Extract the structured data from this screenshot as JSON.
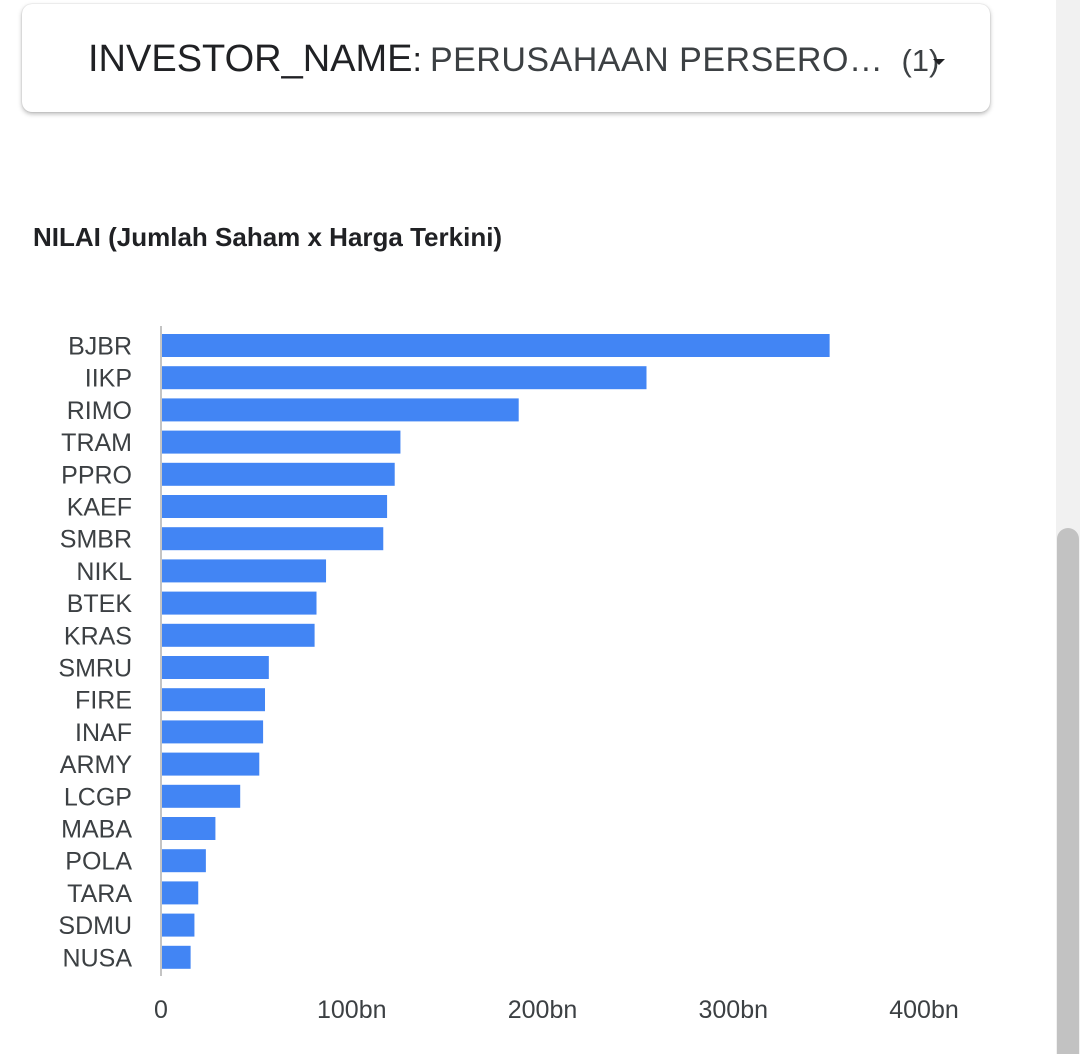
{
  "filter": {
    "field": "INVESTOR_NAME",
    "colon": ":",
    "value": "PERUSAHAAN PERSERO…",
    "count": "(1)"
  },
  "chart_data": {
    "type": "bar",
    "orientation": "horizontal",
    "title": "NILAI (Jumlah Saham x Harga Terkini)",
    "xlabel": "",
    "ylabel": "",
    "categories": [
      "BJBR",
      "IIKP",
      "RIMO",
      "TRAM",
      "PPRO",
      "KAEF",
      "SMBR",
      "NIKL",
      "BTEK",
      "KRAS",
      "SMRU",
      "FIRE",
      "INAF",
      "ARMY",
      "LCGP",
      "MABA",
      "POLA",
      "TARA",
      "SDMU",
      "NUSA"
    ],
    "values": [
      350,
      254,
      187,
      125,
      122,
      118,
      116,
      86,
      81,
      80,
      56,
      54,
      53,
      51,
      41,
      28,
      23,
      19,
      17,
      15
    ],
    "unit": "bn",
    "xlim": [
      0,
      400
    ],
    "x_ticks": [
      0,
      100,
      200,
      300,
      400
    ],
    "x_tick_labels": [
      "0",
      "100bn",
      "200bn",
      "300bn",
      "400bn"
    ],
    "bar_color": "#4285f4",
    "grid": false,
    "legend": "none"
  }
}
